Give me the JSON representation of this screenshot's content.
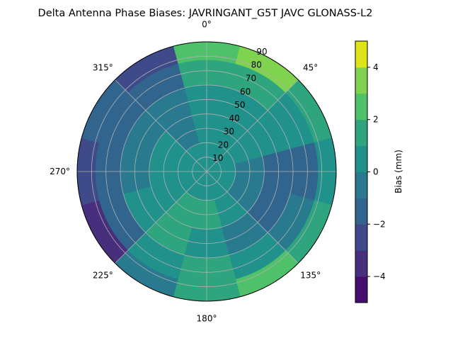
{
  "chart_data": {
    "type": "heatmap",
    "subtype": "polar-contour",
    "title": "Delta Antenna Phase Biases: JAVRINGANT_G5T  JAVC GLONASS-L2",
    "theta_tick_labels": [
      "0°",
      "45°",
      "90°",
      "135°",
      "180°",
      "225°",
      "270°",
      "315°"
    ],
    "theta_ticks_deg": [
      0,
      45,
      90,
      135,
      180,
      225,
      270,
      315
    ],
    "r_tick_labels": [
      "10",
      "20",
      "30",
      "40",
      "50",
      "60",
      "70",
      "80",
      "90"
    ],
    "r_ticks": [
      10,
      20,
      30,
      40,
      50,
      60,
      70,
      80,
      90
    ],
    "rlim": [
      0,
      90
    ],
    "grid": true,
    "colorbar": {
      "label": "Bias (mm)",
      "levels": [
        -5,
        -4,
        -3,
        -2,
        -1,
        0,
        1,
        2,
        3,
        4,
        5
      ],
      "tick_values": [
        -4,
        -2,
        0,
        2,
        4
      ],
      "tick_labels": [
        "−4",
        "−2",
        "0",
        "2",
        "4"
      ],
      "colors": [
        "#440f6c",
        "#472f7d",
        "#3e4a89",
        "#32658e",
        "#297a8e",
        "#21918c",
        "#2ea57f",
        "#4fc16a",
        "#7fd34e",
        "#a5db36"
      ]
    },
    "top_color": "#dfe318",
    "azimuth_deg": [
      0,
      30,
      60,
      90,
      120,
      150,
      180,
      210,
      240,
      270,
      300,
      330
    ],
    "zenith_deg": [
      10,
      30,
      50,
      70,
      85
    ],
    "bias_mm": [
      [
        0.5,
        0.5,
        0.5,
        1.5,
        2.5
      ],
      [
        0.5,
        0.5,
        0.5,
        1.5,
        3.5
      ],
      [
        0.5,
        0.5,
        0.5,
        0.5,
        1.5
      ],
      [
        0.5,
        -0.5,
        -1.5,
        -1.5,
        0.5
      ],
      [
        0.5,
        -0.5,
        -1.5,
        -0.5,
        1.5
      ],
      [
        0.5,
        0.5,
        -0.5,
        0.5,
        2.5
      ],
      [
        0.5,
        1.5,
        0.5,
        1.5,
        1.5
      ],
      [
        0.5,
        1.5,
        1.5,
        0.5,
        -0.5
      ],
      [
        0.5,
        0.5,
        0.5,
        -1.5,
        -3.5
      ],
      [
        0.5,
        0.5,
        -0.5,
        -1.5,
        -2.5
      ],
      [
        0.5,
        0.5,
        -0.5,
        -1.5,
        -1.5
      ],
      [
        0.5,
        -0.5,
        -0.5,
        -1.5,
        -2.5
      ]
    ]
  }
}
